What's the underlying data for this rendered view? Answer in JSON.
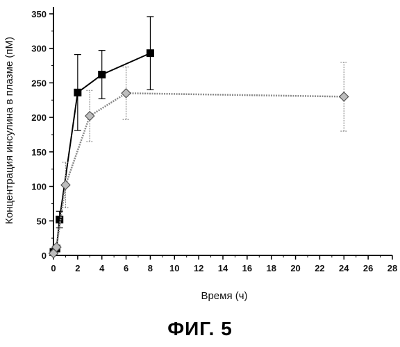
{
  "figure_caption": "ФИГ. 5",
  "chart_data": {
    "type": "line",
    "xlabel": "Время (ч)",
    "ylabel": "Концентрация инсулина в плазме (пМ)",
    "xlim": [
      0,
      28
    ],
    "ylim": [
      0,
      360
    ],
    "xticks": [
      0,
      2,
      4,
      6,
      8,
      10,
      12,
      14,
      16,
      18,
      20,
      22,
      24,
      26,
      28
    ],
    "yticks": [
      0,
      50,
      100,
      150,
      200,
      250,
      300,
      350
    ],
    "grid": false,
    "series": [
      {
        "marker": "square",
        "line_style": "solid",
        "color": "#000000",
        "points": [
          {
            "x": 0,
            "y": 5,
            "err": 0
          },
          {
            "x": 0.25,
            "y": 10,
            "err": 0
          },
          {
            "x": 0.5,
            "y": 52,
            "err": 12
          },
          {
            "x": 2,
            "y": 236,
            "err": 55
          },
          {
            "x": 4,
            "y": 262,
            "err": 35
          },
          {
            "x": 8,
            "y": 293,
            "err": 53
          }
        ]
      },
      {
        "marker": "diamond",
        "line_style": "dotted",
        "color": "#888888",
        "points": [
          {
            "x": 0,
            "y": 3,
            "err": 0
          },
          {
            "x": 0.25,
            "y": 12,
            "err": 0
          },
          {
            "x": 1,
            "y": 102,
            "err": 33
          },
          {
            "x": 3,
            "y": 202,
            "err": 37
          },
          {
            "x": 6,
            "y": 235,
            "err": 38
          },
          {
            "x": 24,
            "y": 230,
            "err": 50
          }
        ]
      }
    ]
  }
}
